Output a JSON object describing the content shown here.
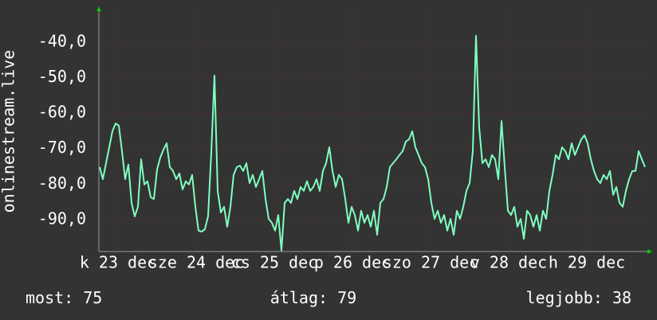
{
  "chart_data": {
    "type": "line",
    "y_label": "onlinestream.live",
    "color": "#7fffc0",
    "grid": true,
    "values": [
      -75.2,
      -78.6,
      -74.1,
      -69.6,
      -65.1,
      -62.9,
      -63.5,
      -70.7,
      -78.6,
      -74.5,
      -85.3,
      -89.1,
      -86.4,
      -73.0,
      -80.1,
      -79.2,
      -83.7,
      -84.2,
      -75.9,
      -72.5,
      -70.3,
      -68.5,
      -75.2,
      -76.3,
      -78.6,
      -77.0,
      -81.5,
      -79.2,
      -80.1,
      -77.4,
      -86.4,
      -93.1,
      -93.4,
      -92.7,
      -89.0,
      -71.0,
      -49.4,
      -81.9,
      -88.0,
      -86.4,
      -92.0,
      -86.4,
      -77.4,
      -75.2,
      -74.8,
      -76.3,
      -74.1,
      -79.7,
      -77.4,
      -80.8,
      -78.6,
      -76.3,
      -84.2,
      -89.8,
      -90.9,
      -93.1,
      -88.7,
      -98.7,
      -85.3,
      -84.2,
      -85.3,
      -81.9,
      -84.2,
      -80.8,
      -81.9,
      -79.2,
      -81.9,
      -80.8,
      -78.6,
      -81.9,
      -76.3,
      -74.1,
      -69.6,
      -76.3,
      -80.8,
      -77.4,
      -78.6,
      -84.2,
      -90.9,
      -86.4,
      -88.7,
      -93.1,
      -87.5,
      -90.9,
      -88.7,
      -92.0,
      -87.5,
      -94.3,
      -85.3,
      -84.2,
      -80.8,
      -75.2,
      -74.1,
      -73.0,
      -71.8,
      -70.7,
      -68.0,
      -67.4,
      -65.1,
      -69.6,
      -71.8,
      -74.1,
      -75.2,
      -78.6,
      -85.3,
      -89.8,
      -87.5,
      -90.9,
      -88.7,
      -93.1,
      -89.8,
      -94.3,
      -87.5,
      -89.8,
      -86.4,
      -81.9,
      -79.7,
      -70.7,
      -38.2,
      -64.0,
      -74.1,
      -73.0,
      -75.2,
      -71.8,
      -73.0,
      -78.6,
      -62.2,
      -75.2,
      -87.5,
      -88.7,
      -86.4,
      -92.0,
      -89.8,
      -95.4,
      -87.5,
      -88.7,
      -92.0,
      -88.7,
      -93.1,
      -87.5,
      -89.8,
      -81.9,
      -77.4,
      -71.8,
      -73.0,
      -69.6,
      -70.7,
      -73.0,
      -68.5,
      -71.8,
      -69.6,
      -67.4,
      -66.2,
      -68.5,
      -73.0,
      -76.3,
      -78.6,
      -79.7,
      -77.4,
      -78.6,
      -76.3,
      -83.0,
      -80.8,
      -85.3,
      -86.4,
      -81.9,
      -78.6,
      -76.3,
      -76.3,
      -70.7,
      -73.0,
      -75.2
    ],
    "xlim": [
      -0.25,
      171.25
    ],
    "xticks": [
      {
        "value": 5.75,
        "label": "k 23 dec"
      },
      {
        "value": 30.25,
        "label": "sze 24 dec"
      },
      {
        "value": 54.75,
        "label": "cs 25 dec"
      },
      {
        "value": 79.25,
        "label": "p 26 dec"
      },
      {
        "value": 103.75,
        "label": "szo 27 dec"
      },
      {
        "value": 128.25,
        "label": "v 28 dec"
      },
      {
        "value": 152.75,
        "label": "h 29 dec"
      }
    ],
    "ylim": [
      -99,
      -30.8
    ],
    "yticks": [
      {
        "value": -40,
        "label": "-40,0"
      },
      {
        "value": -50,
        "label": "-50,0"
      },
      {
        "value": -60,
        "label": "-60,0"
      },
      {
        "value": -70,
        "label": "-70,0"
      },
      {
        "value": -80,
        "label": "-80,0"
      },
      {
        "value": -90,
        "label": "-90,0"
      }
    ],
    "stats": [
      {
        "label": "most:",
        "value": 75
      },
      {
        "label": "átlag:",
        "value": 79
      },
      {
        "label": "legjobb:",
        "value": 38
      }
    ]
  }
}
